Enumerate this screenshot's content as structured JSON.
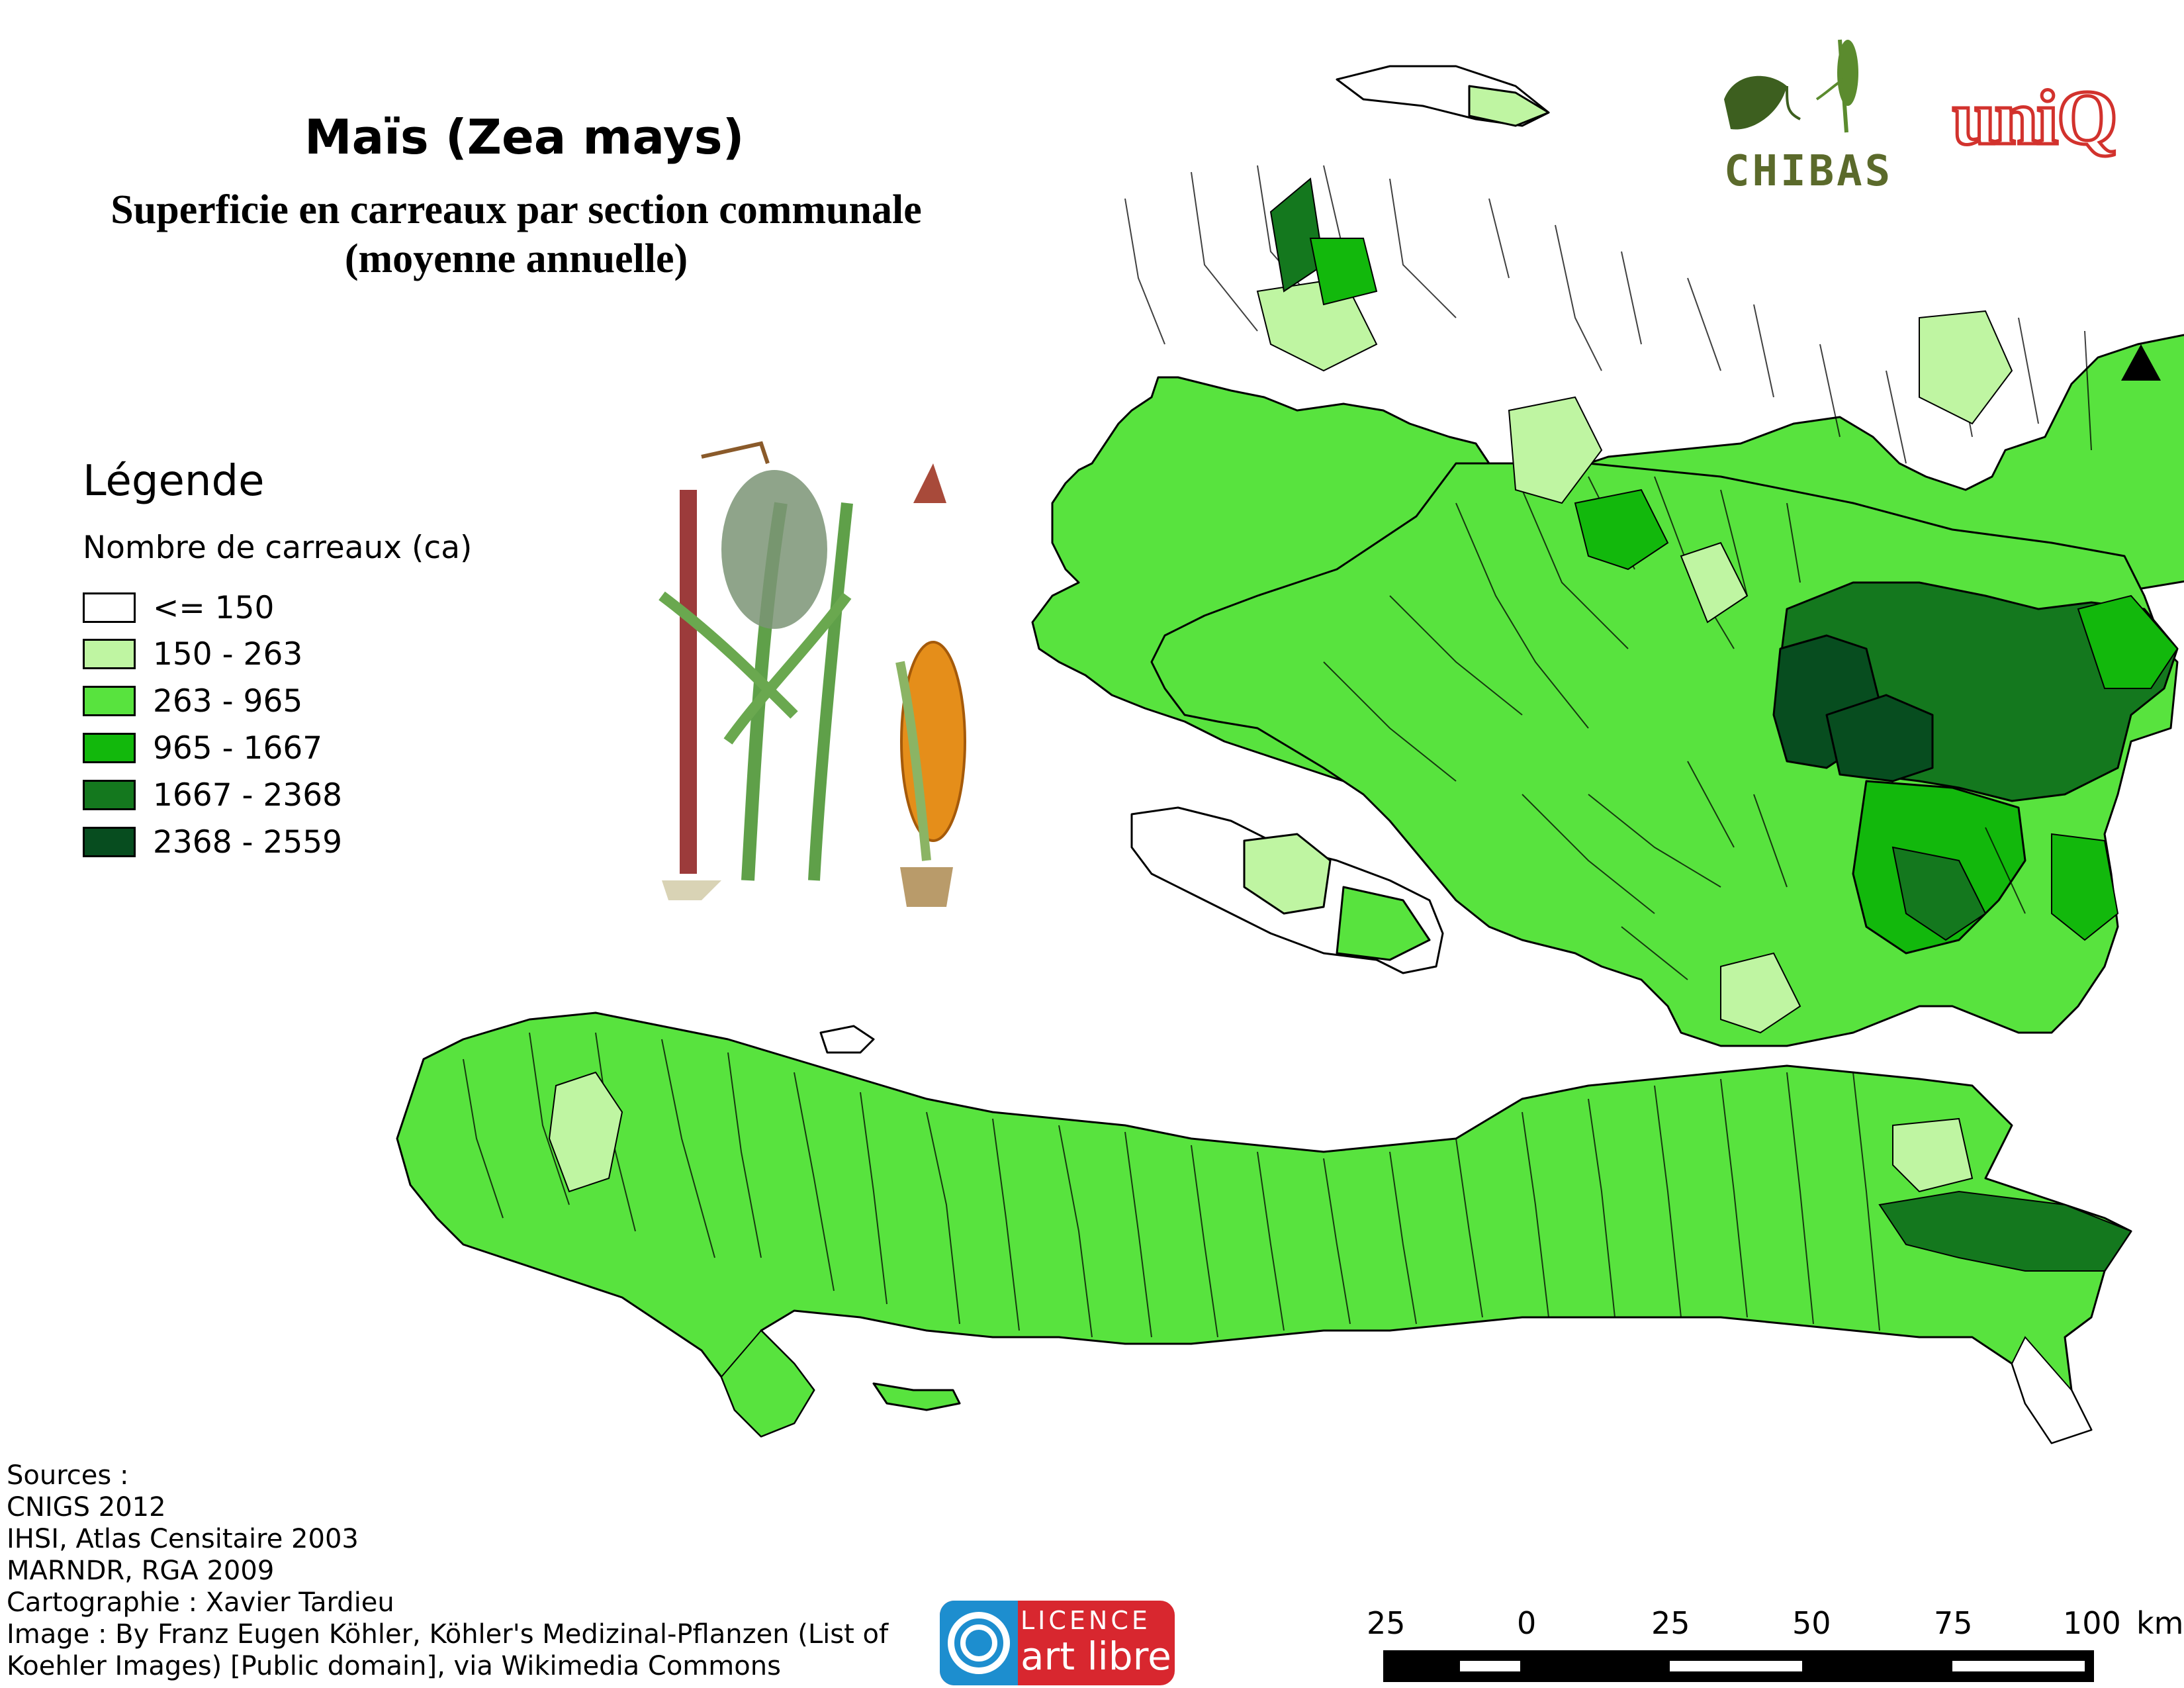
{
  "title": "Maïs (Zea mays)",
  "subtitle_line1": "Superficie en carreaux par section communale",
  "subtitle_line2": "(moyenne annuelle)",
  "legend": {
    "heading": "Légende",
    "subheading": "Nombre de carreaux (ca)",
    "classes": [
      {
        "label": "<= 150",
        "color": "#ffffff"
      },
      {
        "label": "150 - 263",
        "color": "#bff5a2"
      },
      {
        "label": "263 - 965",
        "color": "#58e33e"
      },
      {
        "label": "965 - 1667",
        "color": "#12b80c"
      },
      {
        "label": "1667 - 2368",
        "color": "#14781e"
      },
      {
        "label": "2368 - 2559",
        "color": "#074d1f"
      }
    ]
  },
  "sources": [
    "Sources :",
    "CNIGS 2012",
    "IHSI, Atlas Censitaire 2003",
    "MARNDR, RGA 2009",
    "Cartographie : Xavier Tardieu",
    "Image : By Franz Eugen Köhler, Köhler's Medizinal-Pflanzen (List of",
    "Koehler Images) [Public domain], via Wikimedia Commons"
  ],
  "logos": {
    "chibas": "CHIBAS",
    "uniq": "uniQ",
    "licence_top": "LICENCE",
    "licence_bottom": "art libre"
  },
  "scale_bar": {
    "labels": [
      "25",
      "0",
      "25",
      "50",
      "75",
      "100"
    ],
    "unit": "km"
  },
  "north_arrow": "triangle-north-icon"
}
